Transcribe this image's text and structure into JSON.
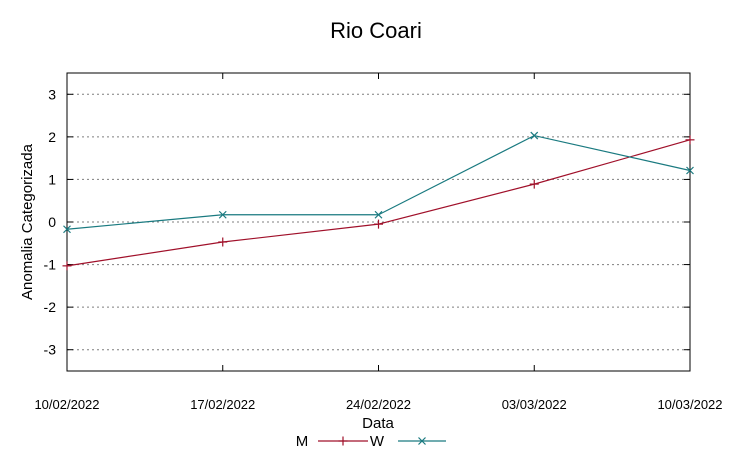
{
  "chart_data": {
    "type": "line",
    "title": "Rio Coari",
    "xlabel": "Data",
    "ylabel": "Anomalia Categorizada",
    "categories": [
      "10/02/2022",
      "17/02/2022",
      "24/02/2022",
      "03/03/2022",
      "10/03/2022"
    ],
    "yticks": [
      "3",
      "2",
      "1",
      "0",
      "-1",
      "-2",
      "-3"
    ],
    "ylim": [
      -3.5,
      3.5
    ],
    "grid": true,
    "legend_position": "bottom",
    "series": [
      {
        "name": "M",
        "values": [
          -1.03,
          -0.47,
          -0.05,
          0.89,
          1.93
        ],
        "color": "#a0102a",
        "marker": "plus"
      },
      {
        "name": "W",
        "values": [
          -0.17,
          0.17,
          0.17,
          2.03,
          1.21
        ],
        "color": "#1a7a80",
        "marker": "cross"
      }
    ]
  }
}
